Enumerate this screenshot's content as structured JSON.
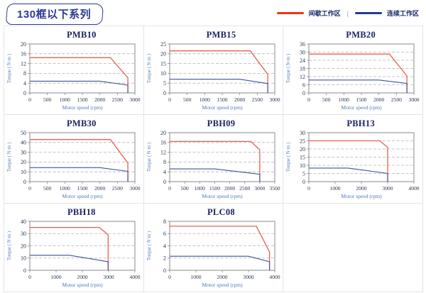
{
  "header": {
    "title": "130框以下系列",
    "legend": {
      "separator": "|",
      "items": [
        {
          "name": "intermittent-working-zone",
          "label": "间歇工作区",
          "color": "#e8380d"
        },
        {
          "name": "continuous-working-zone",
          "label": "连续工作区",
          "color": "#1f3d8c"
        }
      ]
    }
  },
  "axes": {
    "xlabel": "Motor speed (rpm)",
    "ylabel": "Torque ( N·m )"
  },
  "style": {
    "intermittent_line_color": "#e8604f",
    "continuous_line_color": "#3a5596",
    "frame_color": "#8a8a8a",
    "grid_color": "#b3b3b3",
    "tick_text_color": "#2a3450",
    "axis_label_color": "#4a79bd"
  },
  "chart_data": [
    {
      "type": "line",
      "title": "PMB10",
      "xlabel": "Motor speed (rpm)",
      "ylabel": "Torque ( N·m )",
      "xlim": [
        0,
        3000
      ],
      "ylim": [
        0,
        20
      ],
      "xticks": [
        0,
        500,
        1000,
        1500,
        2000,
        2500,
        3000
      ],
      "yticks": [
        0,
        4,
        8,
        12,
        16,
        20
      ],
      "series": [
        {
          "name": "间歇工作区",
          "points": [
            [
              0,
              14.4
            ],
            [
              2300,
              14.4
            ],
            [
              2800,
              6.2
            ],
            [
              2800,
              0
            ]
          ]
        },
        {
          "name": "连续工作区",
          "points": [
            [
              0,
              4.8
            ],
            [
              2000,
              4.8
            ],
            [
              2800,
              3.2
            ],
            [
              2800,
              0
            ]
          ]
        }
      ]
    },
    {
      "type": "line",
      "title": "PMB15",
      "xlabel": "Motor speed (rpm)",
      "ylabel": "Torque ( N·m )",
      "xlim": [
        0,
        3000
      ],
      "ylim": [
        0,
        25
      ],
      "xticks": [
        0,
        500,
        1000,
        1500,
        2000,
        2500,
        3000
      ],
      "yticks": [
        0,
        5,
        10,
        15,
        20,
        25
      ],
      "series": [
        {
          "name": "间歇工作区",
          "points": [
            [
              0,
              21.5
            ],
            [
              2300,
              21.5
            ],
            [
              2800,
              9.5
            ],
            [
              2800,
              0
            ]
          ]
        },
        {
          "name": "连续工作区",
          "points": [
            [
              0,
              7
            ],
            [
              2000,
              7
            ],
            [
              2800,
              4.8
            ],
            [
              2800,
              0
            ]
          ]
        }
      ]
    },
    {
      "type": "line",
      "title": "PMB20",
      "xlabel": "Motor speed (rpm)",
      "ylabel": "Torque ( N·m )",
      "xlim": [
        0,
        3000
      ],
      "ylim": [
        0,
        36
      ],
      "xticks": [
        0,
        500,
        1000,
        1500,
        2000,
        2500,
        3000
      ],
      "yticks": [
        0,
        6,
        12,
        18,
        24,
        30,
        36
      ],
      "series": [
        {
          "name": "间歇工作区",
          "points": [
            [
              0,
              28.6
            ],
            [
              2300,
              28.6
            ],
            [
              2800,
              12.5
            ],
            [
              2800,
              0
            ]
          ]
        },
        {
          "name": "连续工作区",
          "points": [
            [
              0,
              9.5
            ],
            [
              2000,
              9.5
            ],
            [
              2800,
              7
            ],
            [
              2800,
              0
            ]
          ]
        }
      ]
    },
    {
      "type": "line",
      "title": "PMB30",
      "xlabel": "Motor speed (rpm)",
      "ylabel": "Torque ( N·m )",
      "xlim": [
        0,
        3000
      ],
      "ylim": [
        0,
        50
      ],
      "xticks": [
        0,
        500,
        1000,
        1500,
        2000,
        2500,
        3000
      ],
      "yticks": [
        0,
        10,
        20,
        30,
        40,
        50
      ],
      "series": [
        {
          "name": "间歇工作区",
          "points": [
            [
              0,
              43
            ],
            [
              2300,
              43
            ],
            [
              2800,
              19
            ],
            [
              2800,
              0
            ]
          ]
        },
        {
          "name": "连续工作区",
          "points": [
            [
              0,
              14.3
            ],
            [
              2000,
              14.3
            ],
            [
              2800,
              10.5
            ],
            [
              2800,
              0
            ]
          ]
        }
      ]
    },
    {
      "type": "line",
      "title": "PBH09",
      "xlabel": "Motor speed (rpm)",
      "ylabel": "Torque ( N·m )",
      "xlim": [
        0,
        3500
      ],
      "ylim": [
        0,
        20
      ],
      "xticks": [
        0,
        500,
        1000,
        1500,
        2000,
        2500,
        3000,
        3500
      ],
      "yticks": [
        0,
        4,
        8,
        12,
        16,
        20
      ],
      "series": [
        {
          "name": "间歇工作区",
          "points": [
            [
              0,
              16.4
            ],
            [
              2700,
              16.4
            ],
            [
              3000,
              13
            ],
            [
              3000,
              0
            ]
          ]
        },
        {
          "name": "连续工作区",
          "points": [
            [
              0,
              5.2
            ],
            [
              1500,
              5.2
            ],
            [
              3000,
              3
            ],
            [
              3000,
              0
            ]
          ]
        }
      ]
    },
    {
      "type": "line",
      "title": "PBH13",
      "xlabel": "Motor speed (rpm)",
      "ylabel": "Torque ( N·m )",
      "xlim": [
        0,
        4000
      ],
      "ylim": [
        0,
        30
      ],
      "xticks": [
        0,
        1000,
        2000,
        3000,
        4000
      ],
      "yticks": [
        0,
        5,
        10,
        15,
        20,
        25,
        30
      ],
      "series": [
        {
          "name": "间歇工作区",
          "points": [
            [
              0,
              25
            ],
            [
              2700,
              25
            ],
            [
              3000,
              21
            ],
            [
              3000,
              0
            ]
          ]
        },
        {
          "name": "连续工作区",
          "points": [
            [
              0,
              8.3
            ],
            [
              1500,
              8.3
            ],
            [
              3000,
              5
            ],
            [
              3000,
              0
            ]
          ]
        }
      ]
    },
    {
      "type": "line",
      "title": "PBH18",
      "xlabel": "Motor speed (rpm)",
      "ylabel": "Torque ( N·m )",
      "xlim": [
        0,
        4000
      ],
      "ylim": [
        0,
        40
      ],
      "xticks": [
        0,
        1000,
        2000,
        3000,
        4000
      ],
      "yticks": [
        0,
        10,
        20,
        30,
        40
      ],
      "series": [
        {
          "name": "间歇工作区",
          "points": [
            [
              0,
              35
            ],
            [
              2650,
              35
            ],
            [
              2980,
              29
            ],
            [
              2980,
              0
            ]
          ]
        },
        {
          "name": "连续工作区",
          "points": [
            [
              0,
              12.3
            ],
            [
              1500,
              12.3
            ],
            [
              2980,
              7
            ],
            [
              2980,
              0
            ]
          ]
        }
      ]
    },
    {
      "type": "line",
      "title": "PLC08",
      "xlabel": "Motor speed (rpm)",
      "ylabel": "Torque ( N·m )",
      "xlim": [
        0,
        4000
      ],
      "ylim": [
        0,
        8
      ],
      "xticks": [
        0,
        1000,
        2000,
        3000,
        4000
      ],
      "yticks": [
        0,
        2,
        4,
        6,
        8
      ],
      "series": [
        {
          "name": "间歇工作区",
          "points": [
            [
              0,
              7.2
            ],
            [
              3300,
              7.2
            ],
            [
              3800,
              3
            ],
            [
              3800,
              0
            ]
          ]
        },
        {
          "name": "连续工作区",
          "points": [
            [
              0,
              2.3
            ],
            [
              3000,
              2.3
            ],
            [
              3800,
              1.4
            ],
            [
              3800,
              0
            ]
          ]
        }
      ]
    }
  ]
}
